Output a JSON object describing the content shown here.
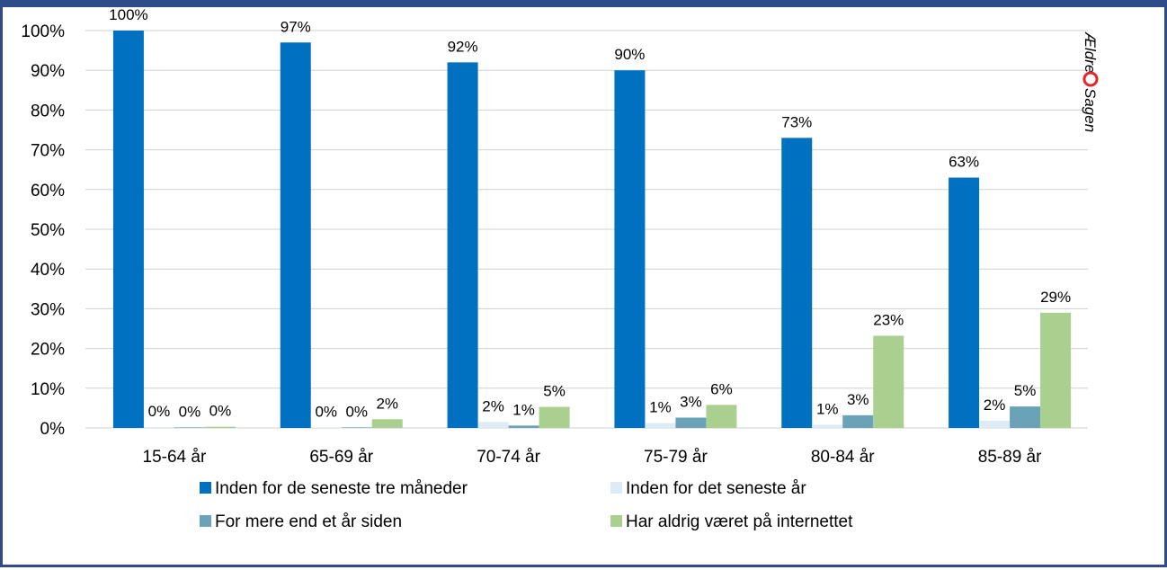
{
  "chart_data": {
    "type": "bar",
    "categories": [
      "15-64 år",
      "65-69 år",
      "70-74 år",
      "75-79 år",
      "80-84 år",
      "85-89 år"
    ],
    "series": [
      {
        "name": "Inden for de seneste tre måneder",
        "color": "#0070c0",
        "values": [
          100,
          97,
          92,
          90,
          73,
          63
        ],
        "labels": [
          "100%",
          "97%",
          "92%",
          "90%",
          "73%",
          "63%"
        ]
      },
      {
        "name": "Inden for det seneste år",
        "color": "#ddebf7",
        "values": [
          0.2,
          0,
          1.5,
          1.2,
          0.8,
          1.8
        ],
        "labels": [
          "0%",
          "0%",
          "2%",
          "1%",
          "1%",
          "2%"
        ]
      },
      {
        "name": "For mere end et år siden",
        "color": "#6aa3b8",
        "values": [
          0.1,
          0,
          0.6,
          2.6,
          3.2,
          5.4
        ],
        "labels": [
          "0%",
          "0%",
          "1%",
          "3%",
          "3%",
          "5%"
        ]
      },
      {
        "name": "Har aldrig været på internettet",
        "color": "#a9d08e",
        "values": [
          0.3,
          2.2,
          5.3,
          5.8,
          23.2,
          29
        ],
        "labels": [
          "0%",
          "2%",
          "5%",
          "6%",
          "23%",
          "29%"
        ]
      }
    ],
    "yticks": [
      "0%",
      "10%",
      "20%",
      "30%",
      "40%",
      "50%",
      "60%",
      "70%",
      "80%",
      "90%",
      "100%"
    ],
    "ylim": [
      0,
      100
    ],
    "grid": true,
    "legend_position": "bottom"
  },
  "logo": {
    "text": "Ældre Sagen",
    "accent_color": "#e3242b"
  },
  "frame_color": "#2e4c89"
}
